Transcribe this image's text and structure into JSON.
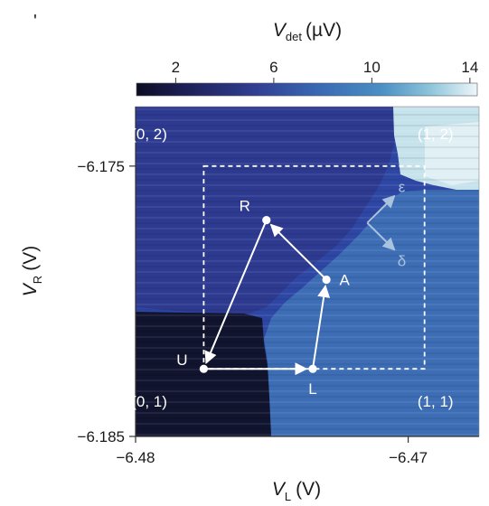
{
  "chart_data": {
    "type": "heatmap",
    "colorbar": {
      "label_main": "V",
      "label_sub": "det",
      "label_unit": "(µV)",
      "ticks": [
        2,
        6,
        10,
        14
      ],
      "tick_labels": [
        "2",
        "6",
        "10",
        "14"
      ],
      "range": [
        0.4,
        14.3
      ]
    },
    "x_axis": {
      "label_main": "V",
      "label_sub": "L",
      "label_unit": "(V)",
      "range": [
        -6.48,
        -6.4674
      ],
      "ticks": [
        -6.48,
        -6.47
      ],
      "tick_labels": [
        "−6.48",
        "−6.47"
      ]
    },
    "y_axis": {
      "label_main": "V",
      "label_sub": "R",
      "label_unit": "(V)",
      "range": [
        -6.185,
        -6.1728
      ],
      "ticks": [
        -6.175,
        -6.185
      ],
      "tick_labels": [
        "−6.175",
        "−6.185"
      ]
    },
    "regions": [
      {
        "label": "(0, 2)",
        "x": -6.4795,
        "y": -6.174,
        "level": 4.5
      },
      {
        "label": "(1, 2)",
        "x": -6.469,
        "y": -6.174,
        "level": 13.0
      },
      {
        "label": "(0, 1)",
        "x": -6.4795,
        "y": -6.1839,
        "level": 1.0
      },
      {
        "label": "(1, 1)",
        "x": -6.469,
        "y": -6.1839,
        "level": 7.0
      }
    ],
    "points": [
      {
        "label": "U",
        "x": -6.4775,
        "y": -6.1825
      },
      {
        "label": "L",
        "x": -6.4735,
        "y": -6.1825
      },
      {
        "label": "A",
        "x": -6.473,
        "y": -6.1792
      },
      {
        "label": "R",
        "x": -6.4752,
        "y": -6.177
      }
    ],
    "path": [
      "U",
      "L",
      "A",
      "R",
      "U"
    ],
    "scan_window": {
      "x": [
        -6.4775,
        -6.4694
      ],
      "y": [
        -6.1825,
        -6.175
      ]
    },
    "directions": [
      {
        "label": "ε",
        "from": [
          -6.4715,
          -6.1771
        ],
        "to": [
          -6.4705,
          -6.1761
        ]
      },
      {
        "label": "δ",
        "from": [
          -6.4715,
          -6.1771
        ],
        "to": [
          -6.4705,
          -6.1781
        ]
      }
    ]
  },
  "top_mark": "'"
}
